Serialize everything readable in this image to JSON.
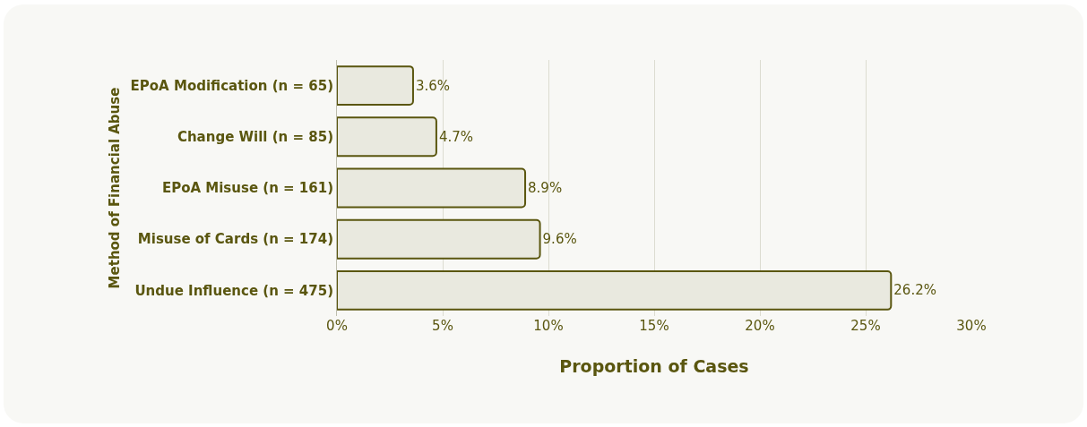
{
  "chart_data": {
    "type": "bar",
    "orientation": "horizontal",
    "xlabel": "Proportion of Cases",
    "ylabel": "Method of Financial Abuse",
    "categories": [
      "EPoA Modification (n = 65)",
      "Change Will (n = 85)",
      "EPoA Misuse (n = 161)",
      "Misuse of Cards (n = 174)",
      "Undue Influence (n = 475)"
    ],
    "values": [
      3.6,
      4.7,
      8.9,
      9.6,
      26.2
    ],
    "value_labels": [
      "3.6%",
      "4.7%",
      "8.9%",
      "9.6%",
      "26.2%"
    ],
    "color": "#e9e9df",
    "xlim": [
      0,
      30
    ],
    "xticks": [
      {
        "value": 0,
        "label": "0%"
      },
      {
        "value": 5,
        "label": "5%"
      },
      {
        "value": 10,
        "label": "10%"
      },
      {
        "value": 15,
        "label": "15%"
      },
      {
        "value": 20,
        "label": "20%"
      },
      {
        "value": 25,
        "label": "25%"
      },
      {
        "value": 30,
        "label": "30%"
      }
    ],
    "grid": "x",
    "legend": false
  }
}
